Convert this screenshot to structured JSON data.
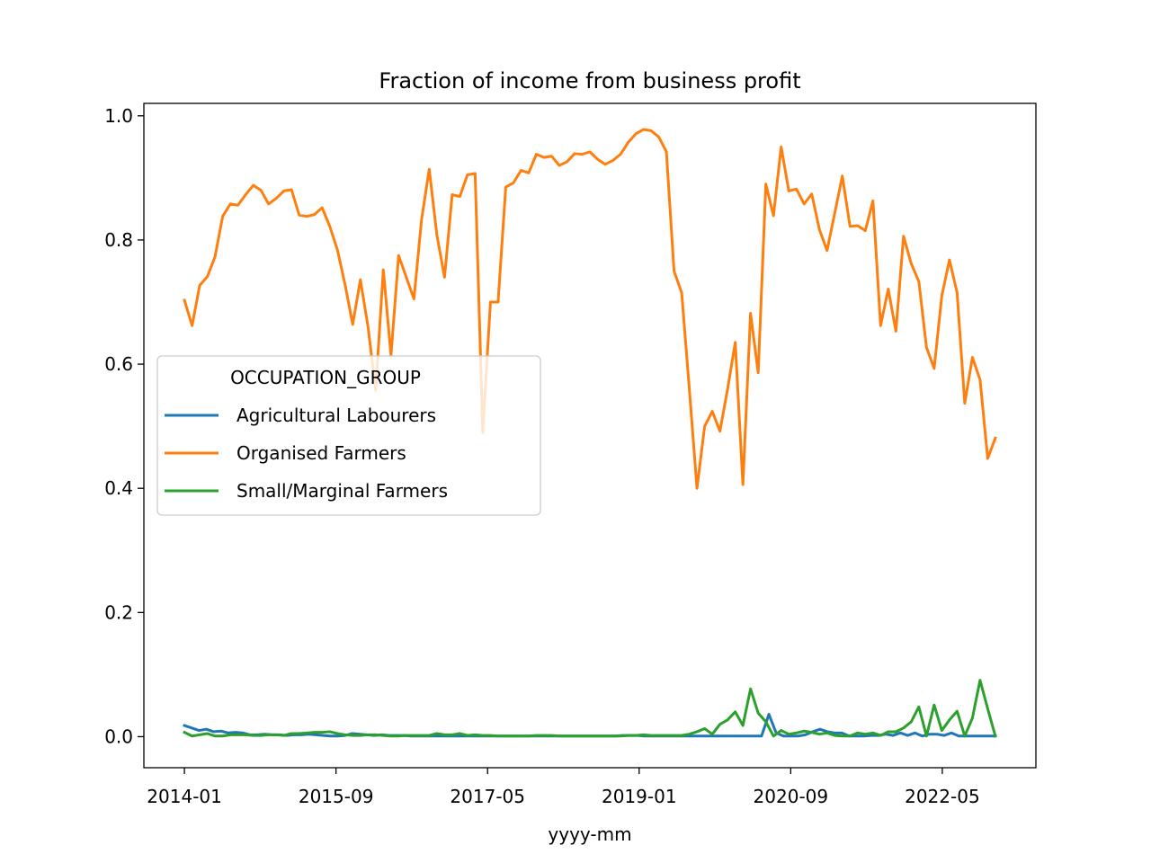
{
  "chart_data": {
    "type": "line",
    "title": "Fraction of income from business profit",
    "xlabel": "yyyy-mm",
    "ylabel": "",
    "x_start": "2014-01",
    "x_end": "2022-12",
    "x_ticks": [
      "2014-01",
      "2015-09",
      "2017-05",
      "2019-01",
      "2020-09",
      "2022-05"
    ],
    "ylim": [
      -0.05,
      1.02
    ],
    "y_ticks": [
      "0.0",
      "0.2",
      "0.4",
      "0.6",
      "0.8",
      "1.0"
    ],
    "grid": false,
    "legend": {
      "title": "OCCUPATION_GROUP",
      "placement": "center-left"
    },
    "series": [
      {
        "name": "Agricultural Labourers",
        "color": "#1f77b4",
        "values": [
          0.018,
          0.014,
          0.01,
          0.012,
          0.008,
          0.009,
          0.006,
          0.007,
          0.006,
          0.003,
          0.003,
          0.004,
          0.003,
          0.003,
          0.002,
          0.003,
          0.003,
          0.004,
          0.003,
          0.002,
          0.001,
          0.001,
          0.002,
          0.005,
          0.004,
          0.003,
          0.002,
          0.003,
          0.002,
          0.002,
          0.002,
          0.001,
          0.001,
          0.001,
          0.001,
          0.001,
          0.001,
          0.001,
          0.001,
          0.001,
          0.001,
          0.001,
          0.001,
          0.001,
          0.001,
          0.001,
          0.001,
          0.001,
          0.001,
          0.001,
          0.001,
          0.001,
          0.001,
          0.001,
          0.001,
          0.001,
          0.001,
          0.001,
          0.001,
          0.001,
          0.002,
          0.002,
          0.002,
          0.001,
          0.001,
          0.001,
          0.001,
          0.001,
          0.001,
          0.001,
          0.001,
          0.001,
          0.001,
          0.001,
          0.001,
          0.001,
          0.001,
          0.001,
          0.001,
          0.001,
          0.036,
          0.006,
          0.001,
          0.001,
          0.001,
          0.003,
          0.008,
          0.012,
          0.008,
          0.006,
          0.006,
          0.001,
          0.001,
          0.001,
          0.002,
          0.002,
          0.004,
          0.002,
          0.006,
          0.002,
          0.006,
          0.001,
          0.004,
          0.004,
          0.002,
          0.006,
          0.001,
          0.001,
          0.001,
          0.001,
          0.001,
          0.001
        ]
      },
      {
        "name": "Organised Farmers",
        "color": "#ff7f0e",
        "values": [
          0.703,
          0.662,
          0.727,
          0.741,
          0.773,
          0.838,
          0.858,
          0.856,
          0.873,
          0.888,
          0.88,
          0.858,
          0.867,
          0.879,
          0.881,
          0.84,
          0.838,
          0.841,
          0.852,
          0.822,
          0.784,
          0.728,
          0.664,
          0.736,
          0.66,
          0.558,
          0.752,
          0.614,
          0.775,
          0.74,
          0.705,
          0.833,
          0.914,
          0.808,
          0.74,
          0.873,
          0.87,
          0.905,
          0.907,
          0.49,
          0.7,
          0.7,
          0.885,
          0.892,
          0.912,
          0.908,
          0.938,
          0.933,
          0.935,
          0.92,
          0.926,
          0.939,
          0.938,
          0.942,
          0.93,
          0.922,
          0.928,
          0.938,
          0.957,
          0.971,
          0.978,
          0.976,
          0.966,
          0.942,
          0.75,
          0.715,
          0.56,
          0.4,
          0.5,
          0.524,
          0.492,
          0.56,
          0.635,
          0.406,
          0.682,
          0.586,
          0.89,
          0.839,
          0.95,
          0.879,
          0.882,
          0.858,
          0.874,
          0.817,
          0.783,
          0.843,
          0.903,
          0.822,
          0.823,
          0.815,
          0.863,
          0.662,
          0.721,
          0.653,
          0.806,
          0.762,
          0.733,
          0.627,
          0.593,
          0.71,
          0.768,
          0.715,
          0.537,
          0.611,
          0.575,
          0.448,
          0.481
        ]
      },
      {
        "name": "Small/Marginal Farmers",
        "color": "#2ca02c",
        "values": [
          0.007,
          0.001,
          0.003,
          0.005,
          0.001,
          0.001,
          0.003,
          0.003,
          0.003,
          0.002,
          0.002,
          0.003,
          0.003,
          0.002,
          0.005,
          0.005,
          0.006,
          0.007,
          0.007,
          0.008,
          0.005,
          0.003,
          0.002,
          0.002,
          0.003,
          0.003,
          0.002,
          0.001,
          0.001,
          0.002,
          0.002,
          0.002,
          0.002,
          0.005,
          0.003,
          0.003,
          0.005,
          0.002,
          0.003,
          0.002,
          0.002,
          0.001,
          0.001,
          0.001,
          0.001,
          0.001,
          0.002,
          0.002,
          0.002,
          0.001,
          0.001,
          0.001,
          0.001,
          0.001,
          0.001,
          0.001,
          0.001,
          0.001,
          0.002,
          0.002,
          0.003,
          0.002,
          0.002,
          0.002,
          0.002,
          0.002,
          0.004,
          0.008,
          0.013,
          0.004,
          0.02,
          0.027,
          0.04,
          0.018,
          0.077,
          0.038,
          0.024,
          0.001,
          0.01,
          0.004,
          0.006,
          0.009,
          0.007,
          0.004,
          0.006,
          0.002,
          0.001,
          0.001,
          0.006,
          0.004,
          0.006,
          0.002,
          0.008,
          0.008,
          0.014,
          0.024,
          0.048,
          0.001,
          0.051,
          0.01,
          0.027,
          0.041,
          0.001,
          0.03,
          0.091,
          0.045,
          0.001
        ]
      }
    ]
  }
}
